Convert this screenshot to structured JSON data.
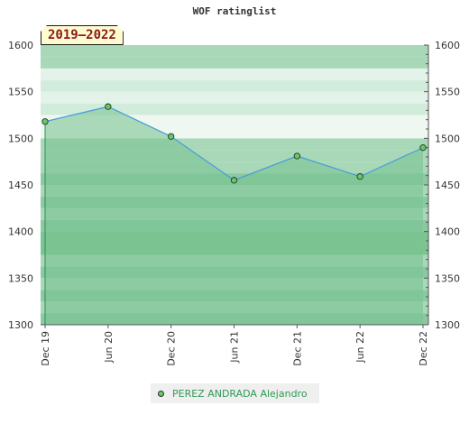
{
  "chart_data": {
    "type": "area",
    "title": "WOF ratinglist",
    "period_label": "2019–2022",
    "categories": [
      "Dec 19",
      "Jun 20",
      "Dec 20",
      "Jun 21",
      "Dec 21",
      "Jun 22",
      "Dec 22"
    ],
    "series": [
      {
        "name": "PEREZ ANDRADA Alejandro",
        "values": [
          1518,
          1534,
          1502,
          1455,
          1481,
          1459,
          1490
        ],
        "color": "#4a9fd8",
        "marker_color": "#6cc46f"
      }
    ],
    "ylim": [
      1300,
      1600
    ],
    "yticks": [
      1300,
      1350,
      1400,
      1450,
      1500,
      1550,
      1600
    ],
    "y_axis": "both-sides",
    "fill_color": "#7cc492",
    "band_colors": [
      "#7cc492",
      "#8bc9a0",
      "#a8d8b8",
      "#d2ecdc",
      "#e3f3e9",
      "#eef8f1"
    ],
    "legend_position": "bottom-center"
  }
}
